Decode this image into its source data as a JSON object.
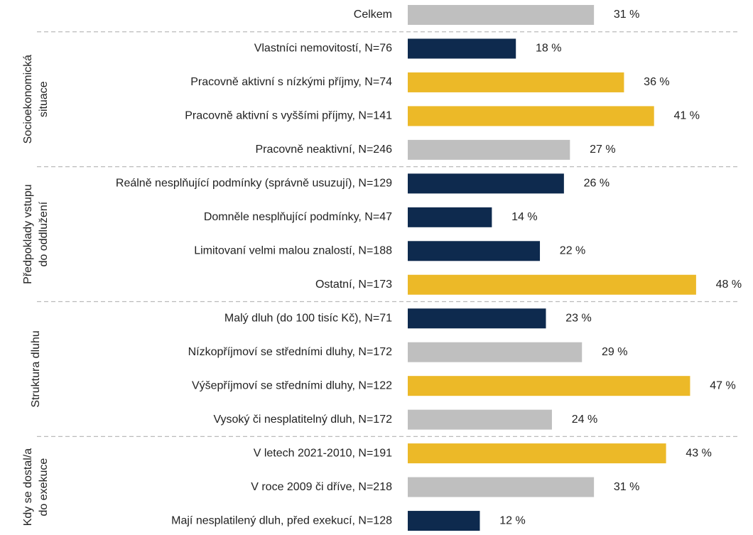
{
  "chart_data": {
    "type": "bar",
    "orientation": "horizontal",
    "xlim": [
      0,
      57
    ],
    "total": {
      "category": "Celkem",
      "value": 31,
      "value_label": "31 %",
      "color": "#bfbfbf"
    },
    "groups": [
      {
        "label": [
          "Socioekonomická",
          "situace"
        ],
        "categories": [
          "Vlastníci nemovitostí, N=76",
          "Pracovně aktivní s nízkými příjmy, N=74",
          "Pracovně aktivní s vyššími příjmy, N=141",
          "Pracovně neaktivní, N=246"
        ],
        "values": [
          18,
          36,
          41,
          27
        ],
        "value_labels": [
          "18 %",
          "36 %",
          "41 %",
          "27 %"
        ],
        "colors": [
          "#0e2a4e",
          "#ecb928",
          "#ecb928",
          "#bfbfbf"
        ]
      },
      {
        "label": [
          "Předpoklady vstupu",
          "do oddlužení"
        ],
        "categories": [
          "Reálně nesplňující podmínky (správně usuzují), N=129",
          "Domněle nesplňující podmínky, N=47",
          "Limitovaní velmi malou znalostí, N=188",
          "Ostatní, N=173"
        ],
        "values": [
          26,
          14,
          22,
          48
        ],
        "value_labels": [
          "26 %",
          "14 %",
          "22 %",
          "48 %"
        ],
        "colors": [
          "#0e2a4e",
          "#0e2a4e",
          "#0e2a4e",
          "#ecb928"
        ]
      },
      {
        "label": [
          "Struktura dluhu"
        ],
        "categories": [
          "Malý dluh (do 100 tisíc Kč), N=71",
          "Nízkopříjmoví se středními dluhy, N=172",
          "Výšepříjmoví se středními dluhy, N=122",
          "Vysoký či nesplatitelný dluh, N=172"
        ],
        "values": [
          23,
          29,
          47,
          24
        ],
        "value_labels": [
          "23 %",
          "29 %",
          "47 %",
          "24 %"
        ],
        "colors": [
          "#0e2a4e",
          "#bfbfbf",
          "#ecb928",
          "#bfbfbf"
        ]
      },
      {
        "label": [
          "Kdy se dostal/a",
          "do exekuce"
        ],
        "categories": [
          "V letech 2021-2010, N=191",
          "V roce 2009 či dříve, N=218",
          "Mají nesplatilený dluh, před exekucí, N=128"
        ],
        "values": [
          43,
          31,
          12
        ],
        "value_labels": [
          "43 %",
          "31 %",
          "12 %"
        ],
        "colors": [
          "#ecb928",
          "#bfbfbf",
          "#0e2a4e"
        ]
      }
    ]
  }
}
